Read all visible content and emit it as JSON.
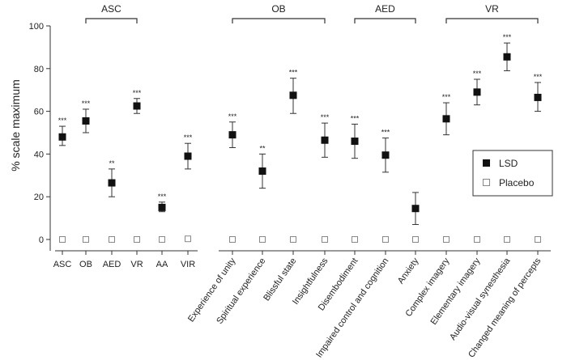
{
  "chart_data": {
    "type": "scatter",
    "ylabel": "% scale maximum",
    "ylim": [
      0,
      100
    ],
    "yticks": [
      0,
      20,
      40,
      60,
      80,
      100
    ],
    "legend": {
      "position": "right",
      "entries": [
        {
          "name": "LSD",
          "marker": "filled-square",
          "color": "#111111"
        },
        {
          "name": "Placebo",
          "marker": "open-square",
          "color": "#888888"
        }
      ]
    },
    "panels": [
      {
        "categories": [
          "ASC",
          "OB",
          "AED",
          "VR",
          "AA",
          "VIR"
        ],
        "label_rotation": 0,
        "lsd": [
          48,
          55.5,
          26.5,
          62.5,
          15,
          39
        ],
        "lsd_err": [
          [
            44,
            53
          ],
          [
            50,
            61
          ],
          [
            20,
            33
          ],
          [
            59,
            66
          ],
          [
            13,
            17.5
          ],
          [
            33,
            45
          ]
        ],
        "placebo": [
          0,
          0,
          0,
          0,
          0,
          0.3
        ],
        "significance": [
          "***",
          "***",
          "**",
          "***",
          "***",
          "***"
        ],
        "groups": [
          {
            "label": "ASC",
            "from": 1,
            "to": 3
          }
        ]
      },
      {
        "categories": [
          "Experience of unity",
          "Spiritual experience",
          "Blissful state",
          "Insightfulness",
          "Disembodiment",
          "Impaired control and cognition",
          "Anxiety",
          "Complex imagery",
          "Elementary imagery",
          "Audio-visual synesthesia",
          "Changed meaning of percepts"
        ],
        "label_rotation": -55,
        "lsd": [
          49,
          32,
          67.5,
          46.5,
          46,
          39.5,
          14.5,
          56.5,
          69,
          85.5,
          66.5
        ],
        "lsd_err": [
          [
            43,
            55
          ],
          [
            24,
            40
          ],
          [
            59,
            75.5
          ],
          [
            38.5,
            54.5
          ],
          [
            38,
            54
          ],
          [
            31.5,
            47.5
          ],
          [
            7,
            22
          ],
          [
            49,
            64
          ],
          [
            63,
            75
          ],
          [
            79,
            92
          ],
          [
            60,
            73.5
          ]
        ],
        "placebo": [
          0,
          0,
          0,
          0,
          0,
          0,
          0,
          0,
          0,
          0,
          0
        ],
        "significance": [
          "***",
          "**",
          "***",
          "***",
          "***",
          "***",
          "",
          "***",
          "***",
          "***",
          "***"
        ],
        "groups": [
          {
            "label": "OB",
            "from": 0,
            "to": 3
          },
          {
            "label": "AED",
            "from": 4,
            "to": 6
          },
          {
            "label": "VR",
            "from": 7,
            "to": 10
          }
        ]
      }
    ]
  }
}
